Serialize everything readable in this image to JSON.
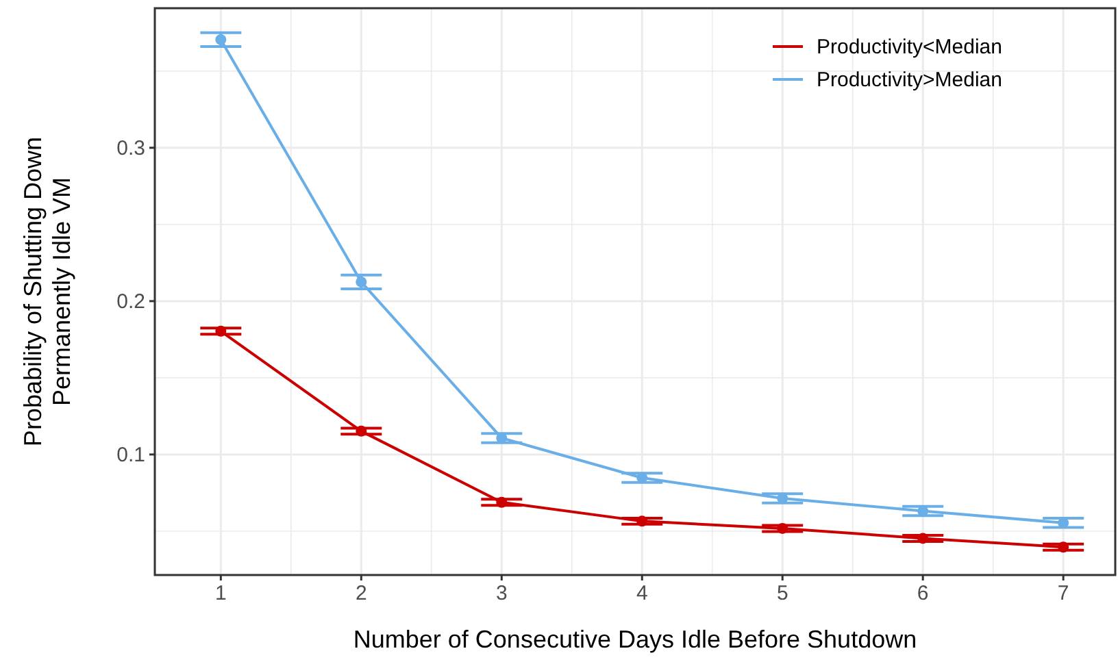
{
  "chart_data": {
    "type": "line",
    "xlabel": "Number of Consecutive Days Idle Before Shutdown",
    "ylabel": "Probability of Shutting Down\nPermanently Idle VM",
    "x": [
      1,
      2,
      3,
      4,
      5,
      6,
      7
    ],
    "xlim": [
      0.53,
      7.37
    ],
    "xticks": [
      1,
      2,
      3,
      4,
      5,
      6,
      7
    ],
    "ylim": [
      0.0214,
      0.391
    ],
    "yticks": [
      0.1,
      0.2,
      0.3
    ],
    "grid": true,
    "legend": "top right",
    "marker": "circle",
    "line_style": "solid",
    "series": [
      {
        "name": "Productivity<Median",
        "color": "#cc0000",
        "values": [
          0.1804,
          0.1152,
          0.0688,
          0.0565,
          0.0518,
          0.0453,
          0.0396
        ],
        "errors": [
          0.002,
          0.002,
          0.002,
          0.002,
          0.002,
          0.002,
          0.002
        ]
      },
      {
        "name": "Productivity>Median",
        "color": "#6aaee8",
        "values": [
          0.3705,
          0.2125,
          0.1107,
          0.0848,
          0.0714,
          0.0631,
          0.0554
        ],
        "errors": [
          0.0045,
          0.0045,
          0.003,
          0.003,
          0.003,
          0.003,
          0.003
        ]
      }
    ]
  }
}
